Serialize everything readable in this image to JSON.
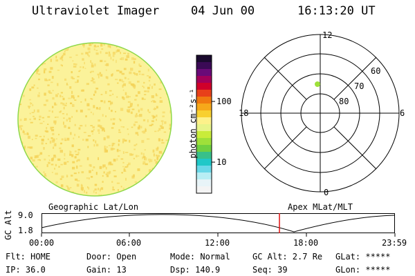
{
  "header": {
    "title": "Ultraviolet Imager",
    "date": "04 Jun 00",
    "time": "16:13:20 UT"
  },
  "colorbar": {
    "unit_label": "photon cm⁻²s⁻¹",
    "ticks": [
      "100",
      "10"
    ],
    "colors": [
      "#1a0a2e",
      "#3a0a55",
      "#6a0a78",
      "#a3005a",
      "#d0002a",
      "#e8401a",
      "#f07a10",
      "#f6a81a",
      "#f8d030",
      "#fdf18a",
      "#e8f48a",
      "#c9ec3a",
      "#9ee03a",
      "#6fd040",
      "#38c08a",
      "#20c8c8",
      "#6ad8e8",
      "#b8eef4",
      "#e8f4f8",
      "#f4f4f4"
    ]
  },
  "disk": {
    "base_color": "#fbf29a",
    "speckle_color": "#f4d35a",
    "rim_color": "#8ed84a"
  },
  "polar": {
    "mlt_labels": {
      "top": "12",
      "bottom": "0",
      "left": "18",
      "right": "6"
    },
    "lat_labels": [
      "60",
      "70",
      "80"
    ],
    "spot_color": "#9ee03a"
  },
  "timeline": {
    "left_label": "Geographic Lat/Lon",
    "right_label": "Apex MLat/MLT",
    "axis_label": "GC Alt",
    "ymax": "9.0",
    "ymin": "1.8",
    "ticks": [
      "00:00",
      "06:00",
      "12:00",
      "18:00",
      "23:59"
    ],
    "marker_color": "#e01010"
  },
  "info": {
    "row1": {
      "flt": "Flt: HOME",
      "door": "Door: Open",
      "mode": "Mode: Normal",
      "gcalt": "GC Alt: 2.7 Re",
      "glat": "GLat: *****"
    },
    "row2": {
      "ip": "IP: 36.0",
      "gain": "Gain: 13",
      "dsp": "Dsp:  140.9",
      "seq": "Seq: 39",
      "glon": "GLon: *****"
    }
  }
}
